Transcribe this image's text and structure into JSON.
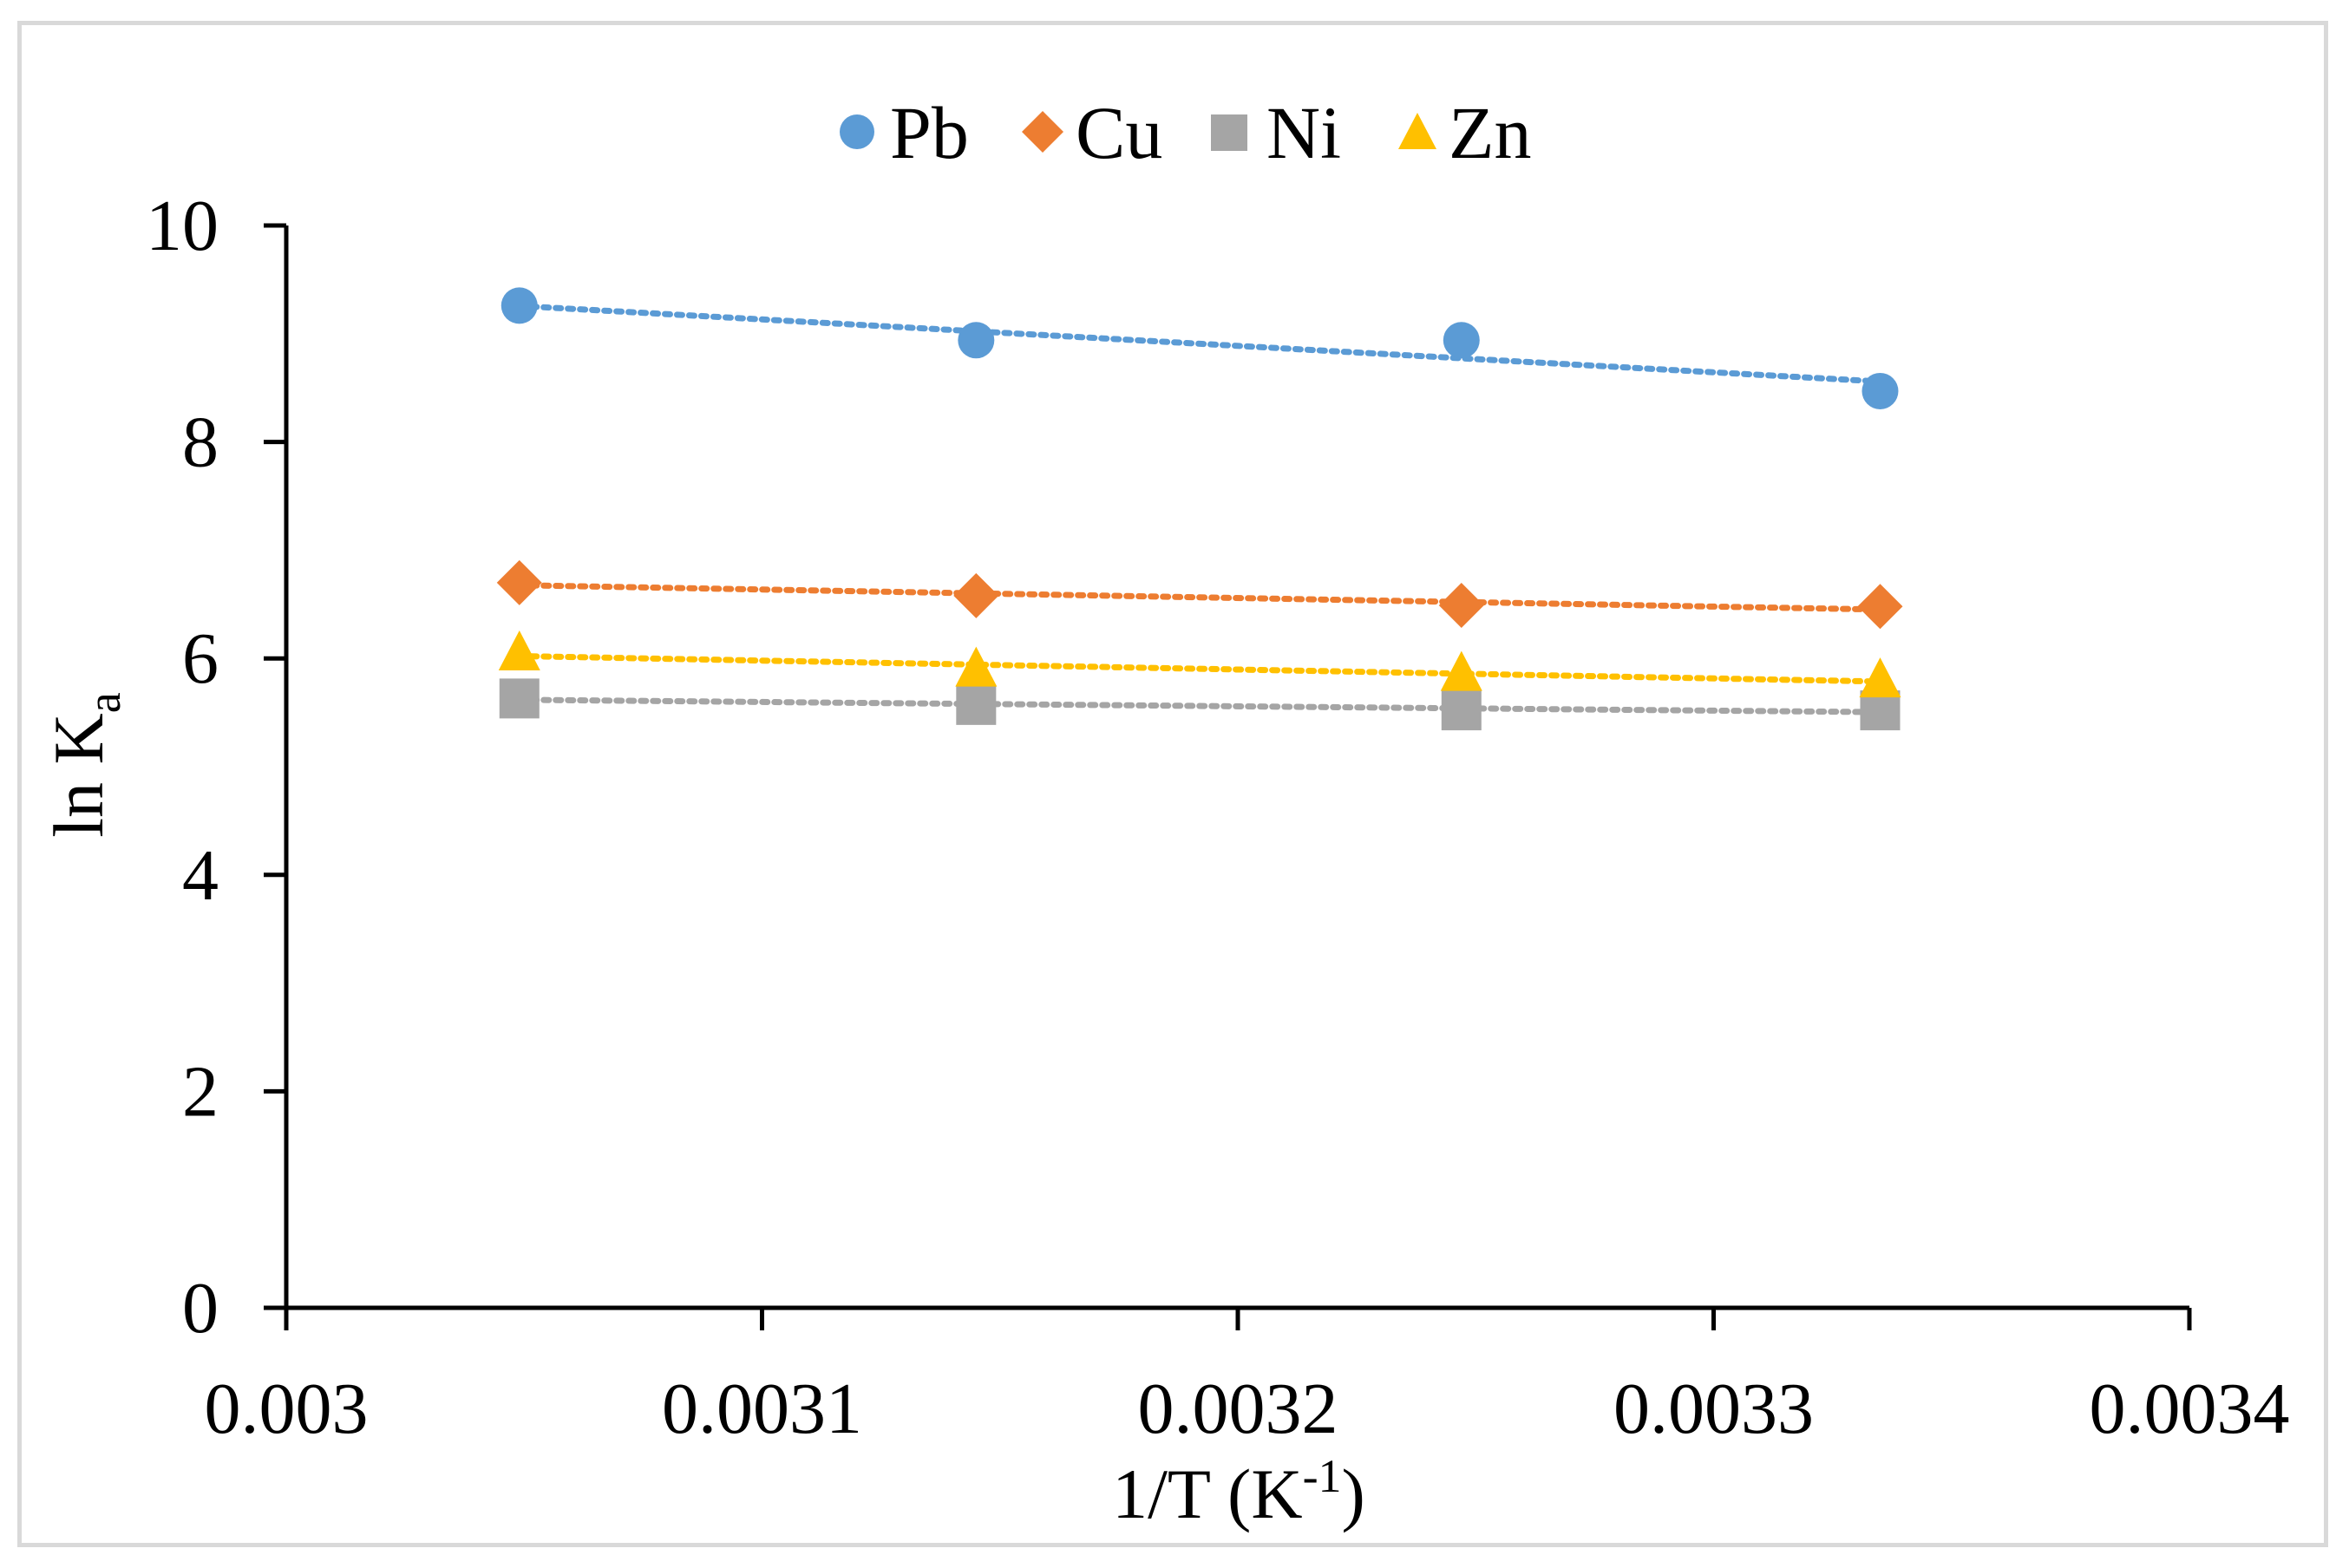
{
  "chart_data": {
    "type": "scatter",
    "title": "",
    "xlabel_main": "1/T (K",
    "xlabel_sup": "-1",
    "xlabel_end": ")",
    "ylabel_main": "ln K",
    "ylabel_sub": "a",
    "xlim": [
      0.003,
      0.0034
    ],
    "ylim": [
      0,
      10
    ],
    "xticks": [
      0.003,
      0.0031,
      0.0032,
      0.0033,
      0.0034
    ],
    "xtick_labels": [
      "0.003",
      "0.0031",
      "0.0032",
      "0.0033",
      "0.0034"
    ],
    "yticks": [
      0,
      2,
      4,
      6,
      8,
      10
    ],
    "ytick_labels": [
      "0",
      "2",
      "4",
      "6",
      "8",
      "10"
    ],
    "grid": false,
    "legend_position": "top-center",
    "trendline": "linear-dotted",
    "x": [
      0.003049,
      0.003145,
      0.003247,
      0.003335
    ],
    "series": [
      {
        "name": "Pb",
        "marker": "circle",
        "color": "#5b9bd5",
        "values": [
          9.26,
          8.94,
          8.94,
          8.47
        ]
      },
      {
        "name": "Cu",
        "marker": "diamond",
        "color": "#ed7d31",
        "values": [
          6.7,
          6.58,
          6.49,
          6.48
        ]
      },
      {
        "name": "Ni",
        "marker": "square",
        "color": "#a5a5a5",
        "values": [
          5.63,
          5.57,
          5.52,
          5.52
        ]
      },
      {
        "name": "Zn",
        "marker": "triangle",
        "color": "#ffc000",
        "values": [
          6.05,
          5.9,
          5.86,
          5.8
        ]
      }
    ]
  }
}
